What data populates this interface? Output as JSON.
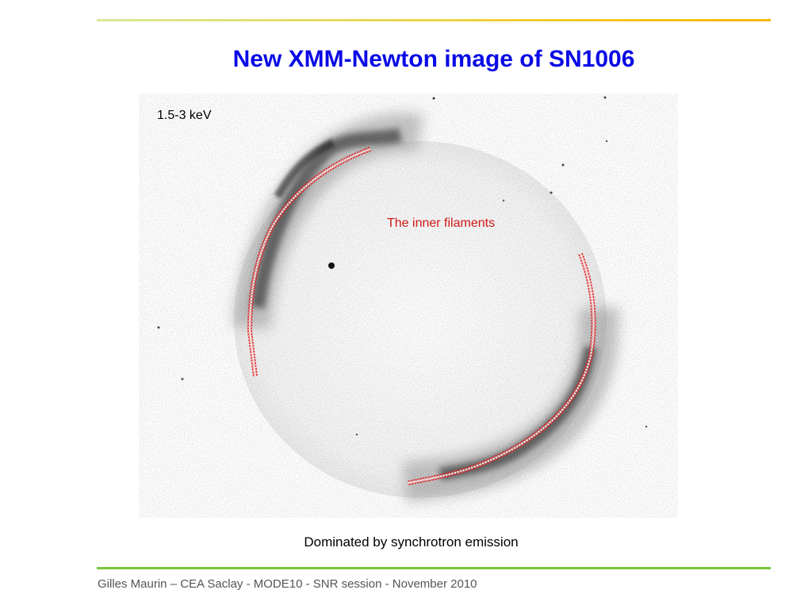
{
  "slide": {
    "title": "New XMM-Newton image of SN1006",
    "energy_band": "1.5-3 keV",
    "annotation": "The inner filaments",
    "caption": "Dominated by synchrotron emission",
    "footer": "Gilles Maurin – CEA Saclay - MODE10 - SNR session - November 2010"
  },
  "colors": {
    "title": "#0a0ae6",
    "annotation": "#d01818",
    "top_rule": "#f2b800",
    "bottom_rule": "#7cc23c"
  }
}
